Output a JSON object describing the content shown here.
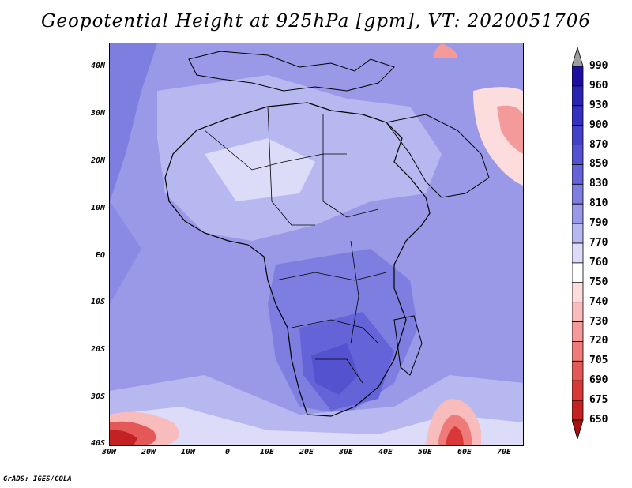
{
  "title": "Geopotential Height at 925hPa [gpm], VT: 2020051706",
  "footer": "GrADS: IGES/COLA",
  "map": {
    "lat_labels": [
      "40N",
      "30N",
      "20N",
      "10N",
      "EQ",
      "10S",
      "20S",
      "30S",
      "40S"
    ],
    "lon_labels": [
      "30W",
      "20W",
      "10W",
      "0",
      "10E",
      "20E",
      "30E",
      "40E",
      "50E",
      "60E",
      "70E"
    ]
  },
  "colorbar": {
    "levels": [
      "990",
      "960",
      "930",
      "900",
      "870",
      "850",
      "830",
      "810",
      "790",
      "770",
      "760",
      "750",
      "740",
      "730",
      "720",
      "705",
      "690",
      "675",
      "650"
    ],
    "colors": [
      "#9e9e9e",
      "#1e0ea0",
      "#2a24b2",
      "#3530c0",
      "#4540c8",
      "#5552d0",
      "#6563d8",
      "#7e7ee0",
      "#9999e8",
      "#b8b8f0",
      "#dcdcf8",
      "#ffffff",
      "#fcdcdc",
      "#f8bcbc",
      "#f49a9a",
      "#ee7a7a",
      "#e45858",
      "#d83838",
      "#c42222",
      "#a81010"
    ]
  }
}
